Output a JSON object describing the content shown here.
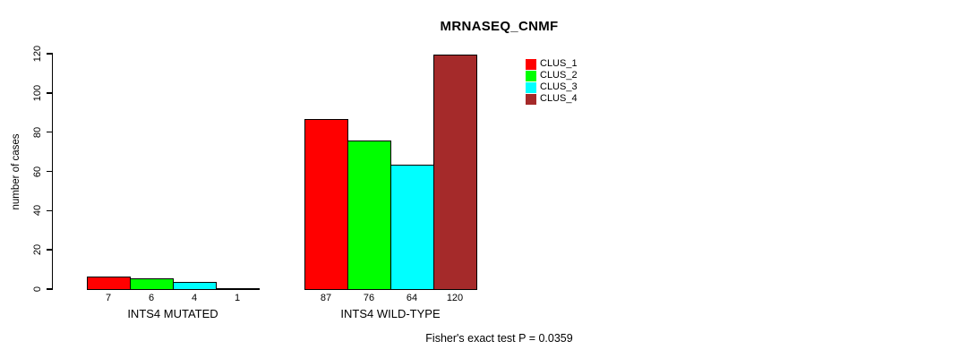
{
  "title": "MRNASEQ_CNMF",
  "chart_data": {
    "type": "bar",
    "title": "MRNASEQ_CNMF",
    "xlabel": "",
    "ylabel": "number of cases",
    "ylim": [
      0,
      120
    ],
    "yticks": [
      0,
      20,
      40,
      60,
      80,
      100,
      120
    ],
    "grid": false,
    "legend_position": "top-right",
    "categories": [
      "INTS4 MUTATED",
      "INTS4 WILD-TYPE"
    ],
    "series": [
      {
        "name": "CLUS_1",
        "color": "#ff0000",
        "values": [
          7,
          87
        ]
      },
      {
        "name": "CLUS_2",
        "color": "#00ff00",
        "values": [
          6,
          76
        ]
      },
      {
        "name": "CLUS_3",
        "color": "#00ffff",
        "values": [
          4,
          64
        ]
      },
      {
        "name": "CLUS_4",
        "color": "#a52a2a",
        "values": [
          1,
          120
        ]
      }
    ],
    "bar_value_labels": [
      [
        "7",
        "6",
        "4",
        "1"
      ],
      [
        "87",
        "76",
        "64",
        "120"
      ]
    ],
    "annotation": "Fisher's exact test P = 0.0359"
  }
}
